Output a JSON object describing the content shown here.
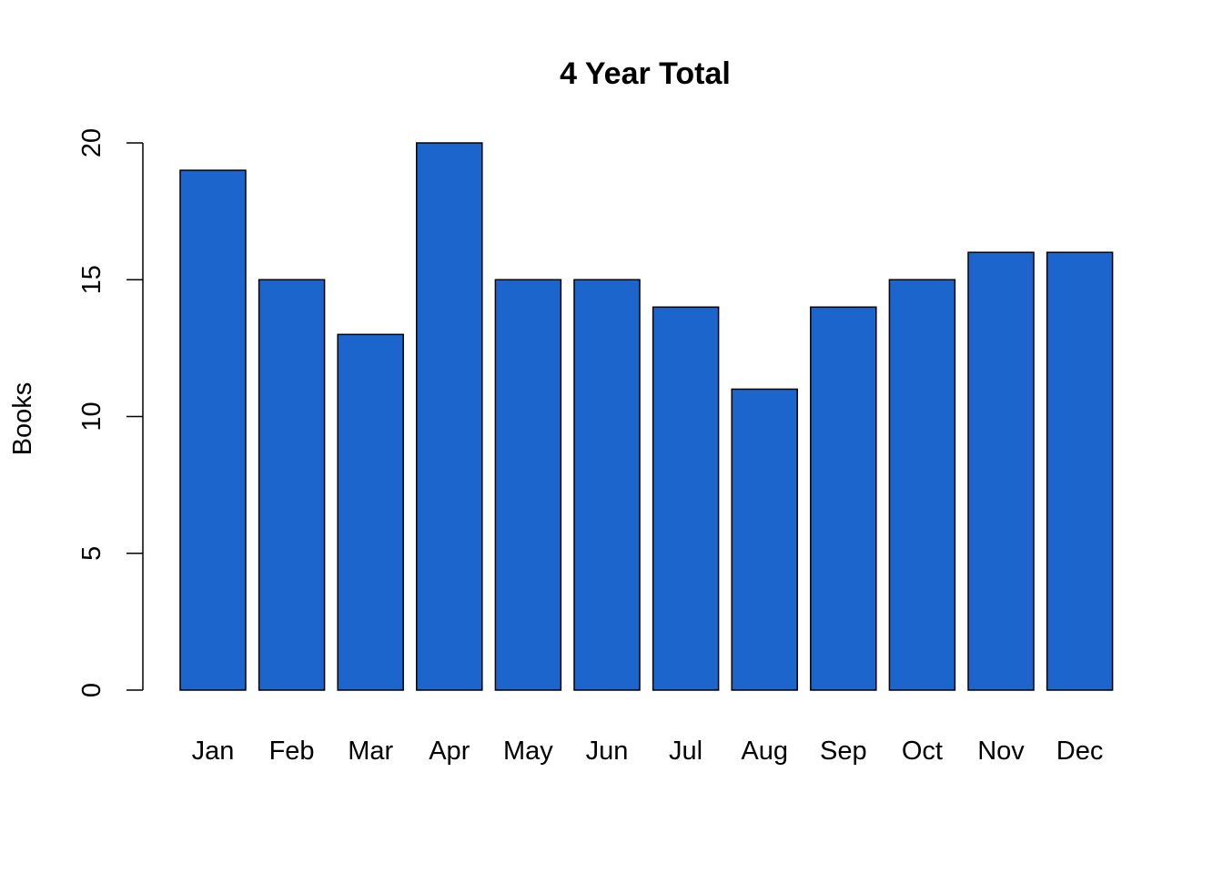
{
  "chart_data": {
    "type": "bar",
    "title": "4 Year Total",
    "xlabel": "",
    "ylabel": "Books",
    "categories": [
      "Jan",
      "Feb",
      "Mar",
      "Apr",
      "May",
      "Jun",
      "Jul",
      "Aug",
      "Sep",
      "Oct",
      "Nov",
      "Dec"
    ],
    "values": [
      19,
      15,
      13,
      20,
      15,
      15,
      14,
      11,
      14,
      15,
      16,
      16
    ],
    "ylim": [
      0,
      20
    ],
    "yticks": [
      0,
      5,
      10,
      15,
      20
    ],
    "grid": false,
    "legend": "none",
    "bar_color": "#1C65CD"
  }
}
